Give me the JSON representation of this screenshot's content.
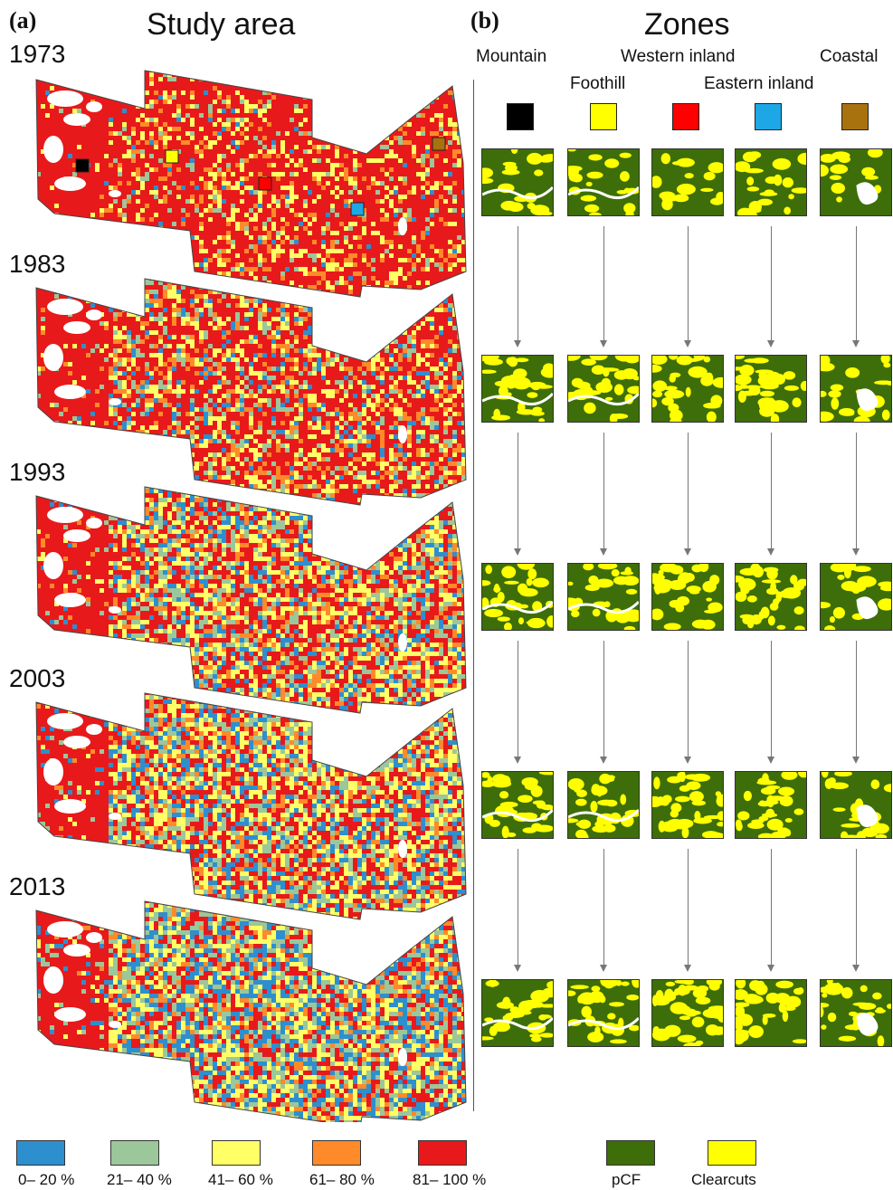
{
  "panel_a": {
    "letter": "(a)",
    "title": "Study area",
    "years": [
      "1973",
      "1983",
      "1993",
      "2003",
      "2013"
    ],
    "markers": [
      {
        "zone": "Mountain",
        "color": "#000000"
      },
      {
        "zone": "Foothill",
        "color": "#ffff00"
      },
      {
        "zone": "Western inland",
        "color": "#ff0000"
      },
      {
        "zone": "Eastern inland",
        "color": "#1ea7e6"
      },
      {
        "zone": "Coastal",
        "color": "#a8720f"
      }
    ]
  },
  "panel_b": {
    "letter": "(b)",
    "title": "Zones",
    "zones": [
      {
        "name": "Mountain",
        "color": "#000000"
      },
      {
        "name": "Foothill",
        "color": "#ffff00"
      },
      {
        "name": "Western inland",
        "color": "#ff0000"
      },
      {
        "name": "Eastern inland",
        "color": "#1ea7e6"
      },
      {
        "name": "Coastal",
        "color": "#a8720f"
      }
    ]
  },
  "legend_cover": [
    {
      "label": "0– 20 %",
      "color": "#2e8fcf"
    },
    {
      "label": "21– 40 %",
      "color": "#9cc79a"
    },
    {
      "label": "41– 60 %",
      "color": "#ffff66"
    },
    {
      "label": "61– 80 %",
      "color": "#ff8a2a"
    },
    {
      "label": "81– 100 %",
      "color": "#e8191b"
    }
  ],
  "legend_class": [
    {
      "label": "pCF",
      "color": "#3d6e0a"
    },
    {
      "label": "Clearcuts",
      "color": "#ffff00"
    }
  ],
  "series_mix": [
    [
      0.02,
      0.05,
      0.16,
      0.1,
      0.67
    ],
    [
      0.07,
      0.1,
      0.19,
      0.12,
      0.52
    ],
    [
      0.12,
      0.15,
      0.23,
      0.12,
      0.38
    ],
    [
      0.17,
      0.17,
      0.25,
      0.11,
      0.3
    ],
    [
      0.22,
      0.2,
      0.24,
      0.1,
      0.24
    ]
  ],
  "clearcut_share": [
    [
      0.3,
      0.35,
      0.25,
      0.35,
      0.2
    ],
    [
      0.5,
      0.45,
      0.45,
      0.5,
      0.35
    ],
    [
      0.45,
      0.45,
      0.5,
      0.55,
      0.3
    ],
    [
      0.5,
      0.45,
      0.6,
      0.6,
      0.4
    ],
    [
      0.45,
      0.45,
      0.65,
      0.65,
      0.45
    ]
  ]
}
